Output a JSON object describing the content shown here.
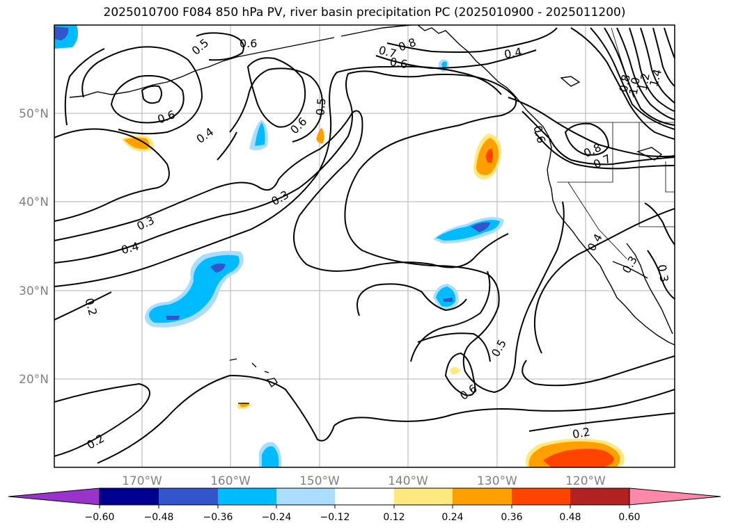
{
  "title": "2025010700 F084 850 hPa PV, river basin precipitation PC (2025010900 - 2025011200)",
  "map": {
    "longitude_ticks": [
      "170°W",
      "160°W",
      "150°W",
      "140°W",
      "130°W",
      "120°W"
    ],
    "latitude_ticks": [
      "50°N",
      "40°N",
      "30°N",
      "20°N"
    ],
    "contour_labels": [
      "0.5",
      "0.6",
      "0.8",
      "0.7",
      "0.6",
      "0.4",
      "0.8",
      "1.0",
      "1.2",
      "1.4",
      "0.6",
      "0.4",
      "0.6",
      "0.5",
      "0.6",
      "0.8",
      "0.7",
      "0.3",
      "0.3",
      "0.4",
      "0.4",
      "0.3",
      "0.3",
      "0.2",
      "0.5",
      "0.6",
      "0.2",
      "0.2"
    ],
    "contour_line_color": "#000000",
    "grid": true
  },
  "colorbar": {
    "ticks": [
      "−0.60",
      "−0.48",
      "−0.36",
      "−0.24",
      "−0.12",
      "0.12",
      "0.24",
      "0.36",
      "0.48",
      "0.60"
    ],
    "colors": [
      "#9933cc",
      "#000090",
      "#3355cc",
      "#00bbff",
      "#aaddff",
      "#ffffff",
      "#ffe97f",
      "#ffa000",
      "#ff4400",
      "#b22222",
      "#ff88aa"
    ],
    "extend": "both"
  }
}
